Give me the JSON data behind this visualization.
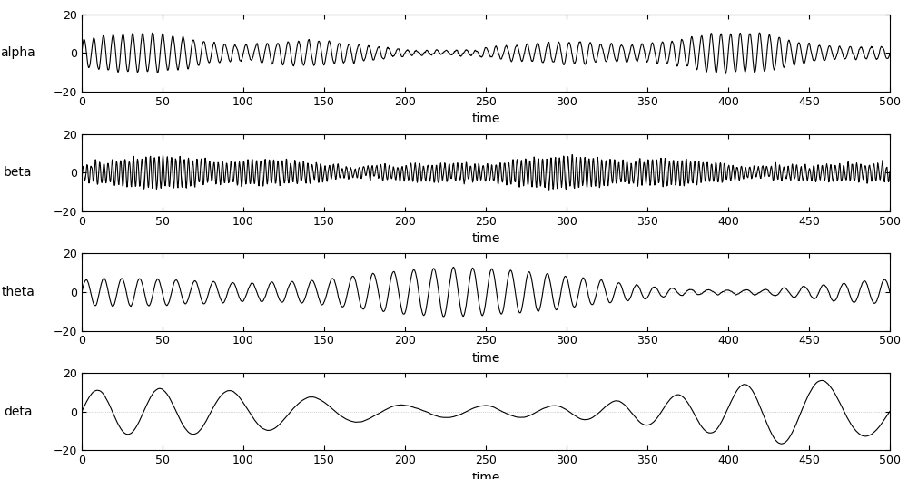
{
  "labels": [
    "alpha",
    "beta",
    "theta",
    "deta"
  ],
  "xlabel": "time",
  "xlim": [
    0,
    500
  ],
  "ylim": [
    -20,
    20
  ],
  "yticks": [
    -20,
    0,
    20
  ],
  "xticks": [
    0,
    50,
    100,
    150,
    200,
    250,
    300,
    350,
    400,
    450,
    500
  ],
  "line_color": "#000000",
  "bg_color": "#ffffff",
  "linewidth": 0.8,
  "figsize": [
    10.0,
    5.28
  ],
  "dpi": 100,
  "seed": 42
}
